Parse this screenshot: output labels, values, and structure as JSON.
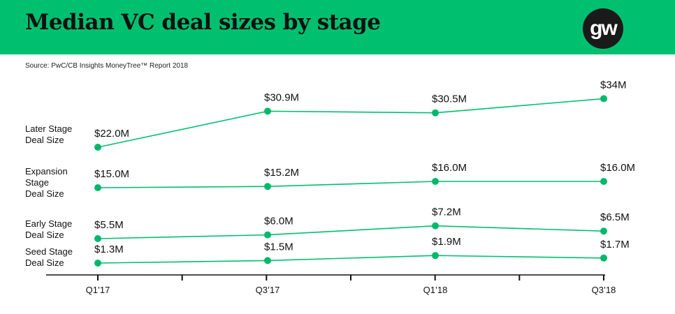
{
  "header": {
    "title": "Median VC deal sizes by stage",
    "logo": "gw",
    "source": "Source: PwC/CB Insights MoneyTree™ Report 2018"
  },
  "colors": {
    "banner": "#00c070",
    "line": "#00c070",
    "marker": "#00b86a"
  },
  "chart_data": {
    "type": "line",
    "categories": [
      "Q1’17",
      "Q3’17",
      "Q1’18",
      "Q3’18"
    ],
    "minor_ticks": true,
    "grid": false,
    "series": [
      {
        "name": "Later Stage Deal Size",
        "label_lines": [
          "Later Stage",
          "Deal Size"
        ],
        "values": [
          22.0,
          30.9,
          30.5,
          34
        ],
        "labels": [
          "$22.0M",
          "$30.9M",
          "$30.5M",
          "$34M"
        ]
      },
      {
        "name": "Expansion Stage Deal Size",
        "label_lines": [
          "Expansion",
          "Stage",
          "Deal Size"
        ],
        "values": [
          15.0,
          15.2,
          16.0,
          16.0
        ],
        "labels": [
          "$15.0M",
          "$15.2M",
          "$16.0M",
          "$16.0M"
        ]
      },
      {
        "name": "Early Stage Deal Size",
        "label_lines": [
          "Early Stage",
          "Deal Size"
        ],
        "values": [
          5.5,
          6.0,
          7.2,
          6.5
        ],
        "labels": [
          "$5.5M",
          "$6.0M",
          "$7.2M",
          "$6.5M"
        ]
      },
      {
        "name": "Seed Stage Deal Size",
        "label_lines": [
          "Seed Stage",
          "Deal Size"
        ],
        "values": [
          1.3,
          1.5,
          1.9,
          1.7
        ],
        "labels": [
          "$1.3M",
          "$1.5M",
          "$1.9M",
          "$1.7M"
        ]
      }
    ]
  }
}
